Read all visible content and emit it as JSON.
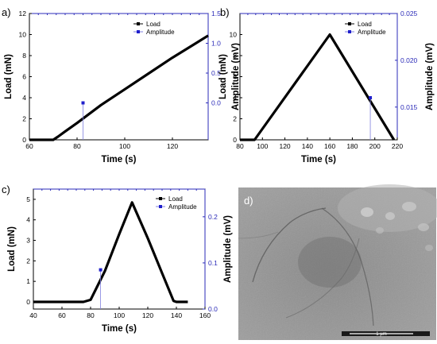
{
  "chart_data": [
    {
      "panel": "a)",
      "type": "line",
      "xlabel": "Time (s)",
      "ylabel": "Load (mN)",
      "y2label": "Amplitude (mV)",
      "xlim": [
        60,
        135
      ],
      "ylim": [
        0,
        12
      ],
      "y2lim": [
        -0.62,
        1.5
      ],
      "xticks": [
        60,
        80,
        100,
        120
      ],
      "yticks": [
        0,
        2,
        4,
        6,
        8,
        10,
        12
      ],
      "y2ticks": [
        0.0,
        0.5,
        1.0,
        1.5
      ],
      "series": [
        {
          "name": "Load",
          "axis": "left",
          "color": "#000000",
          "x": [
            60,
            70,
            72,
            75,
            80,
            90,
            100,
            110,
            120,
            130,
            135
          ],
          "y": [
            0,
            0,
            0.3,
            0.8,
            1.6,
            3.3,
            4.8,
            6.3,
            7.8,
            9.2,
            9.9
          ]
        },
        {
          "name": "Amplitude",
          "axis": "right",
          "color": "#1f1fcc",
          "x": [
            82.5
          ],
          "y": [
            0.0
          ],
          "drop_line": true
        }
      ],
      "legend": "top-right"
    },
    {
      "panel": "b)",
      "type": "line",
      "xlabel": "Time (s)",
      "ylabel": "Load (mN)",
      "y2label": "Amplitude (mV)",
      "xlim": [
        80,
        220
      ],
      "ylim": [
        0,
        12
      ],
      "y2lim": [
        0.0115,
        0.025
      ],
      "xticks": [
        80,
        100,
        120,
        140,
        160,
        180,
        200,
        220
      ],
      "yticks": [
        0,
        2,
        4,
        6,
        8,
        10
      ],
      "y2ticks": [
        0.015,
        0.02,
        0.025
      ],
      "series": [
        {
          "name": "Load",
          "axis": "left",
          "color": "#000000",
          "x": [
            80,
            93,
            160,
            217
          ],
          "y": [
            0,
            0,
            10.0,
            0
          ]
        },
        {
          "name": "Amplitude",
          "axis": "right",
          "color": "#1f1fcc",
          "x": [
            196
          ],
          "y": [
            0.016
          ],
          "drop_line": true
        }
      ],
      "legend": "top-right"
    },
    {
      "panel": "c)",
      "type": "line",
      "xlabel": "Time (s)",
      "ylabel": "Load (mN)",
      "y2label": "Amplitude (mV)",
      "xlim": [
        40,
        160
      ],
      "ylim": [
        -0.35,
        5.5
      ],
      "y2lim": [
        0.0,
        0.26
      ],
      "xticks": [
        40,
        60,
        80,
        100,
        120,
        140,
        160
      ],
      "yticks": [
        0,
        1,
        2,
        3,
        4,
        5
      ],
      "y2ticks": [
        0.0,
        0.1,
        0.2
      ],
      "series": [
        {
          "name": "Load",
          "axis": "left",
          "color": "#000000",
          "x": [
            40,
            75,
            80,
            90,
            100,
            109,
            120,
            130,
            138,
            140,
            148
          ],
          "y": [
            0,
            0,
            0.1,
            1.5,
            3.3,
            4.85,
            3.1,
            1.4,
            0.05,
            0,
            0
          ]
        },
        {
          "name": "Amplitude",
          "axis": "right",
          "color": "#1f1fcc",
          "x": [
            87
          ],
          "y": [
            0.085
          ],
          "drop_line": true
        }
      ],
      "legend": "top-right"
    }
  ],
  "image_panel": {
    "panel": "d)",
    "scale_bar_label": "1 µm"
  }
}
